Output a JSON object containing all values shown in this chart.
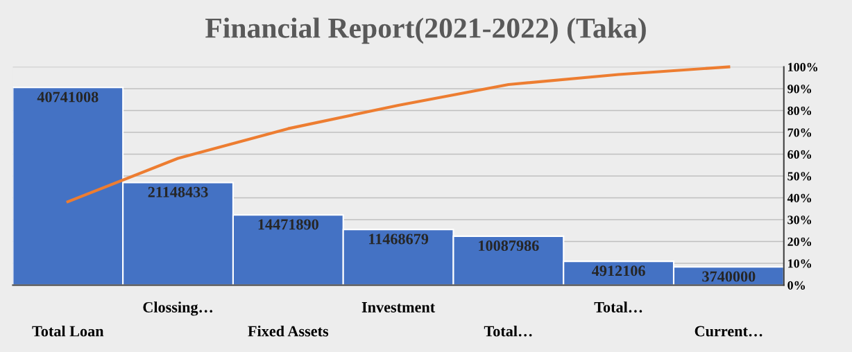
{
  "chart_data": {
    "type": "bar",
    "title": "Financial Report(2021-2022) (Taka)",
    "categories": [
      "Total Loan",
      "Clossing…",
      "Fixed Assets",
      "Investment",
      "Total…",
      "Total…",
      "Current…"
    ],
    "series": [
      {
        "color": "#4472c4",
        "values": [
          40741008,
          21148433,
          14471890,
          11468679,
          10087986,
          4912106,
          3740000
        ],
        "value_labels": [
          "40741008",
          "21148433",
          "14471890",
          "11468679",
          "10087986",
          "4912106",
          "3740000"
        ]
      },
      {
        "type": "line",
        "axis": "y2",
        "color": "#ed7d31",
        "values": [
          38.2,
          58.1,
          71.7,
          82.4,
          91.9,
          96.5,
          100
        ]
      }
    ],
    "ylim": [
      0,
      45000000
    ],
    "y2lim": [
      0,
      100
    ],
    "y2ticks": [
      {
        "value": 0,
        "label": "0%"
      },
      {
        "value": 10,
        "label": "10%"
      },
      {
        "value": 20,
        "label": "20%"
      },
      {
        "value": 30,
        "label": "30%"
      },
      {
        "value": 40,
        "label": "40%"
      },
      {
        "value": 50,
        "label": "50%"
      },
      {
        "value": 60,
        "label": "60%"
      },
      {
        "value": 70,
        "label": "70%"
      },
      {
        "value": 80,
        "label": "80%"
      },
      {
        "value": 90,
        "label": "90%"
      },
      {
        "value": 100,
        "label": "100%"
      }
    ],
    "grid": "y2",
    "tick_labels": "xy2"
  }
}
